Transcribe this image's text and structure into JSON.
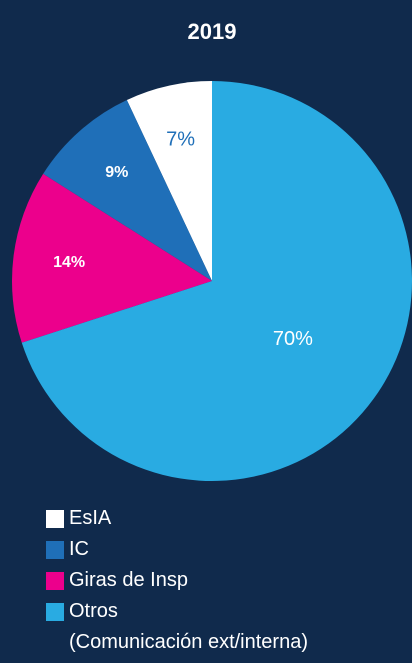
{
  "chart_data": {
    "type": "pie",
    "title": "2019",
    "categories": [
      "EsIA",
      "IC",
      "Giras de Insp",
      "Otros\n(Comunicación ext/interna)"
    ],
    "values": [
      7,
      9,
      14,
      70
    ],
    "value_labels": [
      "7%",
      "9%",
      "14%",
      "70%"
    ],
    "colors": [
      "#ffffff",
      "#1f6fb8",
      "#ec008c",
      "#29abe2"
    ],
    "label_colors": [
      "#1f6fb8",
      "#ffffff",
      "#ffffff",
      "#ffffff"
    ],
    "label_weights": [
      "normal",
      "bold",
      "bold",
      "normal"
    ],
    "legend": "bottom-left"
  }
}
